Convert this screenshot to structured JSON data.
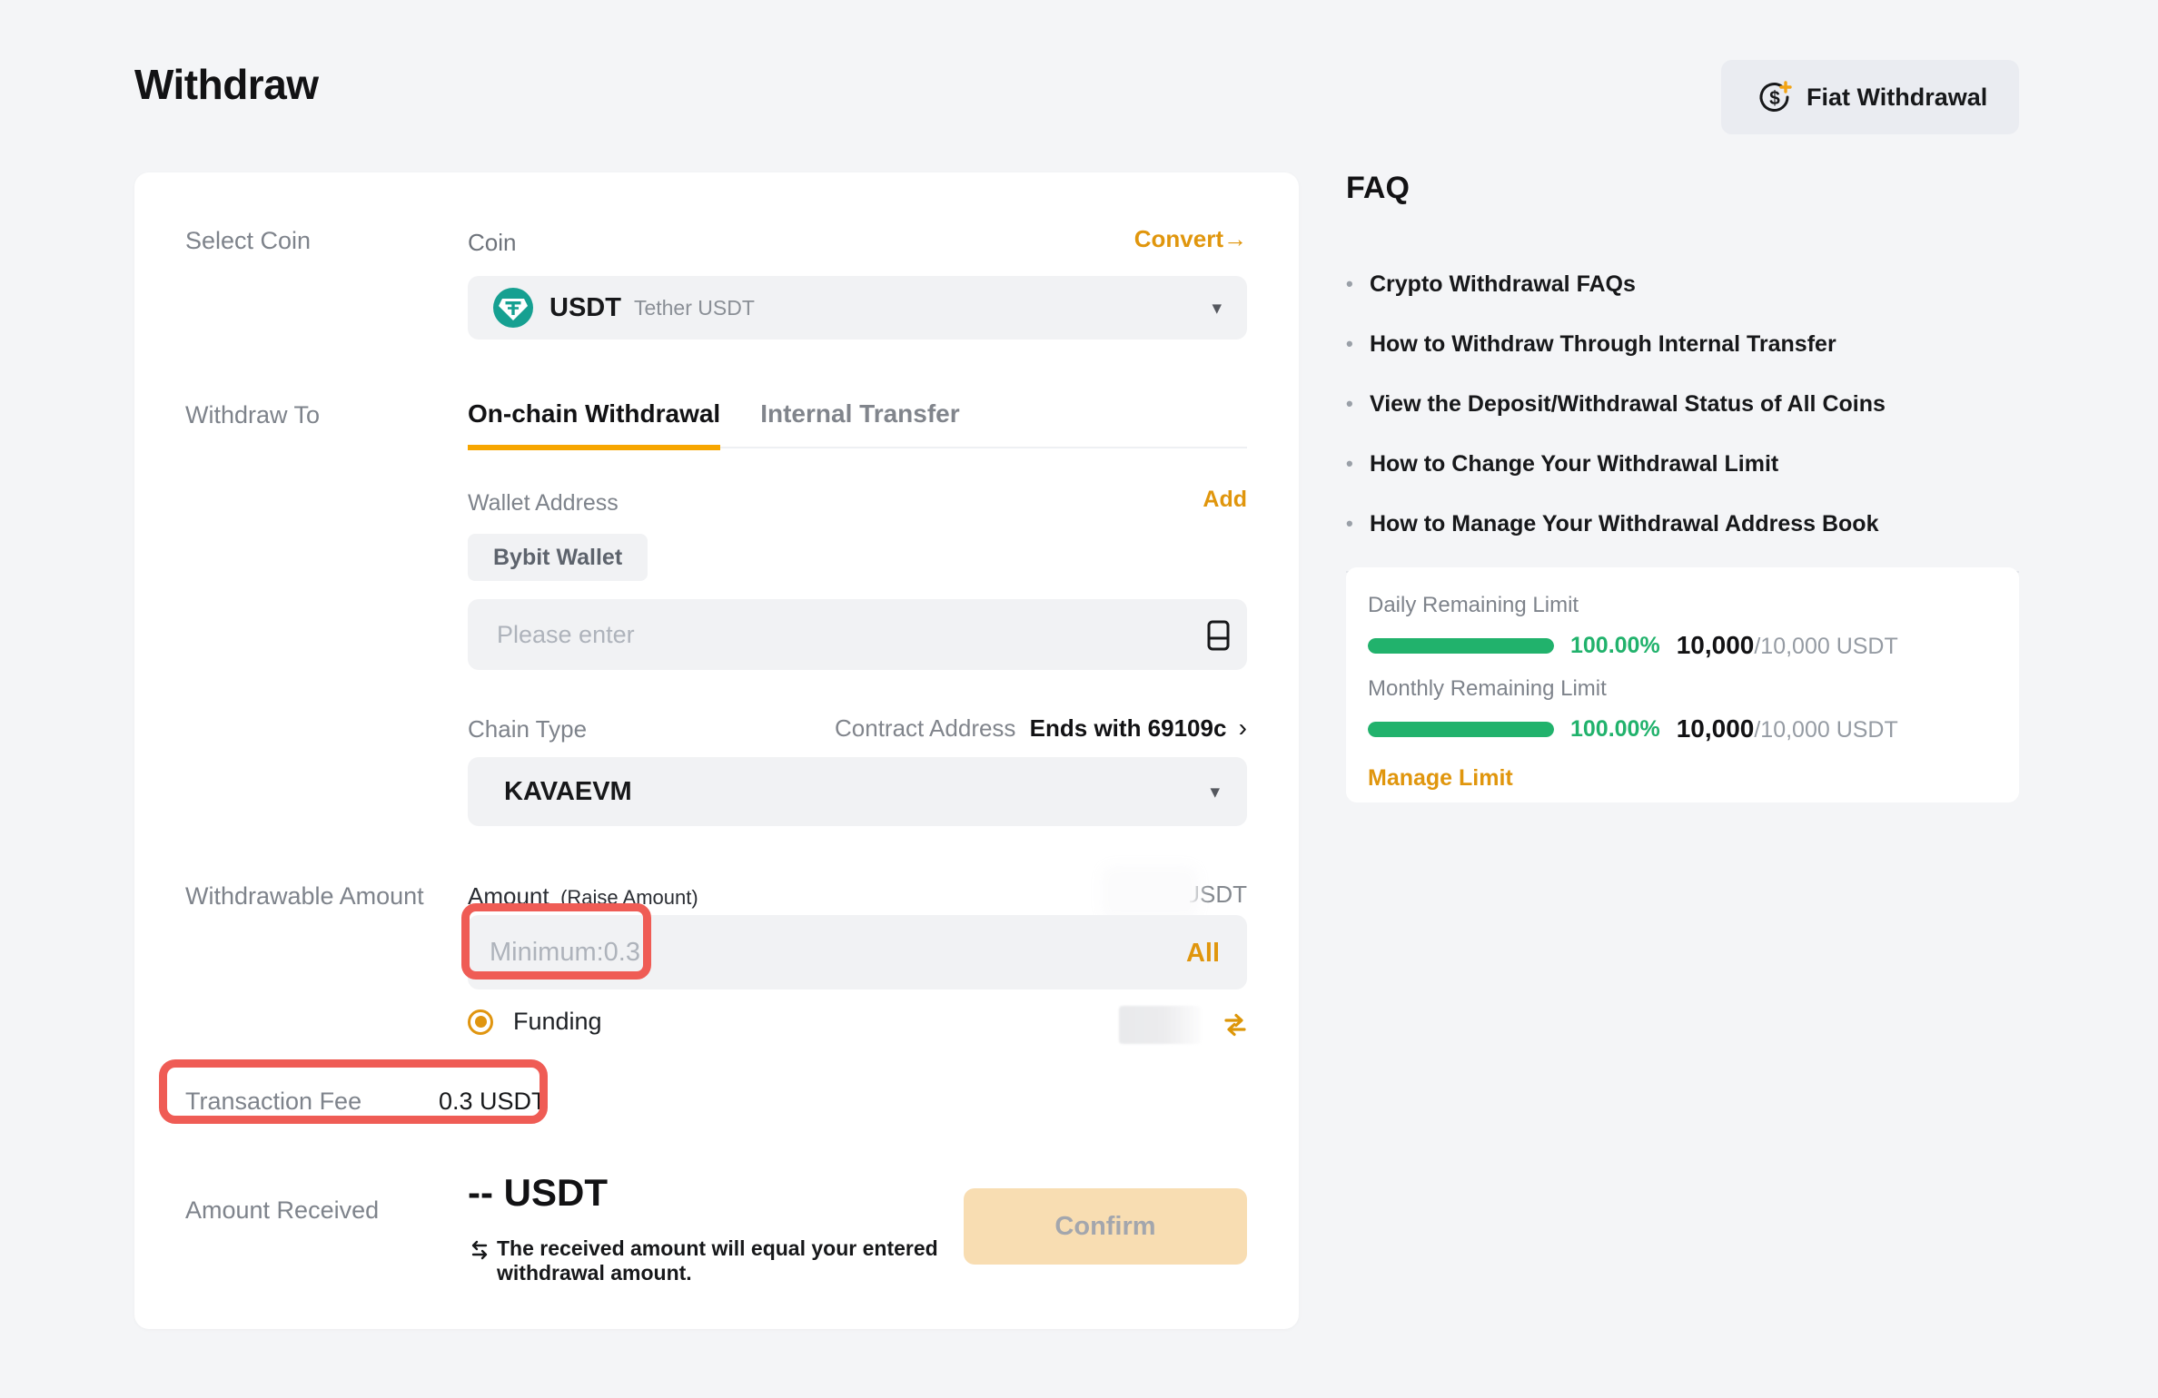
{
  "page": {
    "title": "Withdraw"
  },
  "header": {
    "fiat_withdrawal_label": "Fiat Withdrawal"
  },
  "icons": {
    "convert_arrow": "→",
    "dropdown_caret": "▾",
    "contract_chevron": "›"
  },
  "form": {
    "select_coin": {
      "row_label": "Select Coin",
      "field_label": "Coin",
      "convert_label": "Convert",
      "coin_symbol": "USDT",
      "coin_name": "Tether USDT"
    },
    "withdraw_to": {
      "row_label": "Withdraw To",
      "tabs": [
        {
          "label": "On-chain Withdrawal"
        },
        {
          "label": "Internal Transfer"
        }
      ],
      "wallet_address_label": "Wallet Address",
      "add_label": "Add",
      "saved_wallet_chip": "Bybit Wallet",
      "address_placeholder": "Please enter",
      "chain_type_label": "Chain Type",
      "contract_address_label": "Contract Address",
      "contract_address_value": "Ends with 69109c",
      "chain_value": "KAVAEVM"
    },
    "amount": {
      "row_label": "Withdrawable Amount",
      "field_label": "Amount",
      "field_sublabel": "(Raise Amount)",
      "available_partial": "5",
      "available_unit": "USDT",
      "input_placeholder": "Minimum:0.3",
      "all_label": "All",
      "account_option": "Funding"
    },
    "fee": {
      "label": "Transaction Fee",
      "value": "0.3 USDT"
    },
    "received": {
      "label": "Amount Received",
      "value": "-- USDT",
      "note": "The received amount will equal your entered withdrawal amount.",
      "confirm_label": "Confirm"
    }
  },
  "faq": {
    "title": "FAQ",
    "items": [
      "Crypto Withdrawal FAQs",
      "How to Withdraw Through Internal Transfer",
      "View the Deposit/Withdrawal Status of All Coins",
      "How to Change Your Withdrawal Limit",
      "How to Manage Your Withdrawal Address Book"
    ]
  },
  "limits": {
    "daily_label": "Daily Remaining Limit",
    "daily_percent": "100.00%",
    "daily_value": "10,000",
    "daily_total": "/10,000 USDT",
    "monthly_label": "Monthly Remaining Limit",
    "monthly_percent": "100.00%",
    "monthly_value": "10,000",
    "monthly_total": "/10,000 USDT",
    "manage_label": "Manage Limit",
    "bar_fill_percent": 100
  },
  "colors": {
    "accent_orange": "#e0960d",
    "tab_underline": "#f7a600",
    "progress_green": "#21b26c",
    "annotation_red": "#ef5c55",
    "confirm_disabled_bg": "#f8ddb2"
  }
}
